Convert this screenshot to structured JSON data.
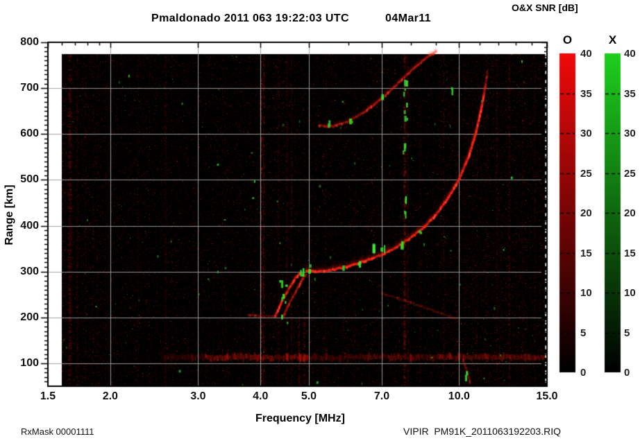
{
  "header": {
    "title": "Pmaldonado 2011 063 19:22:03 UTC",
    "date": "04Mar11",
    "colorbar_title": "O&X SNR [dB]"
  },
  "footer": {
    "rx_mask": "RxMask 00001111",
    "instrument_file": "VIPIR  PM91K_2011063192203.RIQ"
  },
  "chart_data": {
    "type": "heatmap",
    "subtype": "ionogram",
    "description": "VIPIR ionosonde ionogram: O-mode (red) and X-mode (green) echo SNR versus frequency and virtual range",
    "x_axis": {
      "label": "Frequency [MHz]",
      "scale": "log",
      "min": 1.5,
      "max": 15.0,
      "ticks": [
        {
          "value": 1.5,
          "label": "1.5"
        },
        {
          "value": 2.0,
          "label": "2.0"
        },
        {
          "value": 3.0,
          "label": "3.0"
        },
        {
          "value": 4.0,
          "label": "4.0"
        },
        {
          "value": 5.0,
          "label": "5.0"
        },
        {
          "value": 7.0,
          "label": "7.0"
        },
        {
          "value": 10.0,
          "label": "10.0"
        },
        {
          "value": 15.0,
          "label": "15.0"
        }
      ],
      "minor_ticks": [
        1.6,
        1.7,
        1.8,
        1.9,
        2,
        3,
        4,
        5,
        6,
        7,
        8,
        9,
        10,
        11,
        12,
        13,
        14,
        15
      ],
      "gridlines": [
        2,
        3,
        4,
        5,
        7,
        10
      ]
    },
    "y_axis": {
      "label": "Range [km]",
      "min": 50,
      "max": 800,
      "ticks": [
        {
          "value": 800,
          "label": "800"
        },
        {
          "value": 700,
          "label": "700"
        },
        {
          "value": 600,
          "label": "600"
        },
        {
          "value": 500,
          "label": "500"
        },
        {
          "value": 400,
          "label": "400"
        },
        {
          "value": 300,
          "label": "300"
        },
        {
          "value": 200,
          "label": "200"
        },
        {
          "value": 100,
          "label": "100"
        }
      ],
      "minor_step": 10,
      "gridlines": [
        100,
        200,
        300,
        400,
        500,
        600,
        700
      ]
    },
    "colorbars": [
      {
        "label": "O",
        "unit": "dB",
        "min": 0,
        "max": 40,
        "tick_step": 5,
        "tick_labels": [
          "40",
          "35",
          "30",
          "25",
          "20",
          "15",
          "10",
          "5",
          "0"
        ],
        "top_color": "#f00a0a",
        "bottom_color": "#000000"
      },
      {
        "label": "X",
        "unit": "dB",
        "min": 0,
        "max": 40,
        "tick_step": 5,
        "tick_labels": [
          "40",
          "35",
          "30",
          "25",
          "20",
          "15",
          "10",
          "5",
          "0"
        ],
        "top_color": "#1ecf1e",
        "bottom_color": "#000000"
      }
    ],
    "echo_traces": [
      {
        "name": "F-region O-mode main trace",
        "points": [
          [
            4.95,
            302
          ],
          [
            5.15,
            300
          ],
          [
            5.5,
            302
          ],
          [
            6.0,
            311
          ],
          [
            6.5,
            323
          ],
          [
            7.0,
            336
          ],
          [
            7.5,
            353
          ],
          [
            8.0,
            373
          ],
          [
            8.5,
            396
          ],
          [
            9.0,
            424
          ],
          [
            9.5,
            459
          ],
          [
            10.0,
            500
          ],
          [
            10.45,
            549
          ],
          [
            10.8,
            600
          ],
          [
            11.1,
            658
          ],
          [
            11.3,
            705
          ],
          [
            11.42,
            742
          ]
        ],
        "intensity": 1.0,
        "smear": 10,
        "fade_end": true
      },
      {
        "name": "second-hop / upper trace",
        "points": [
          [
            5.25,
            618
          ],
          [
            5.6,
            616
          ],
          [
            6.0,
            627
          ],
          [
            6.5,
            649
          ],
          [
            7.0,
            677
          ],
          [
            7.5,
            707
          ],
          [
            8.05,
            739
          ],
          [
            8.6,
            766
          ],
          [
            9.05,
            781
          ]
        ],
        "intensity": 0.55,
        "smear": 8,
        "fade_end": false
      },
      {
        "name": "F1 cusp left branch",
        "points": [
          [
            4.28,
            202
          ],
          [
            4.42,
            235
          ],
          [
            4.58,
            265
          ],
          [
            4.72,
            288
          ],
          [
            4.83,
            298
          ]
        ],
        "intensity": 0.85,
        "smear": 6,
        "fade_end": false
      },
      {
        "name": "F1 cusp right branch",
        "points": [
          [
            4.44,
            200
          ],
          [
            4.58,
            232
          ],
          [
            4.73,
            260
          ],
          [
            4.87,
            285
          ],
          [
            4.96,
            297
          ]
        ],
        "intensity": 0.5,
        "smear": 6,
        "fade_end": false
      },
      {
        "name": "200 km base extension",
        "points": [
          [
            3.78,
            204
          ],
          [
            4.05,
            202
          ],
          [
            4.3,
            203
          ]
        ],
        "intensity": 0.3,
        "smear": 4,
        "fade_end": false
      },
      {
        "name": "faint descending arc",
        "points": [
          [
            7.0,
            252
          ],
          [
            7.7,
            238
          ],
          [
            8.5,
            222
          ],
          [
            9.3,
            206
          ],
          [
            9.9,
            197
          ]
        ],
        "intensity": 0.2,
        "smear": 3,
        "fade_end": false
      },
      {
        "name": "below-E slanted streak",
        "points": [
          [
            10.2,
            105
          ],
          [
            10.45,
            70
          ],
          [
            10.55,
            52
          ]
        ],
        "intensity": 0.3,
        "smear": 4,
        "fade_end": false
      }
    ],
    "e_region_band": {
      "km": 113,
      "segments": [
        [
          2.55,
          3.1,
          0.22
        ],
        [
          3.1,
          4.95,
          0.5
        ],
        [
          4.95,
          6.5,
          0.28
        ],
        [
          6.5,
          9.0,
          0.35
        ],
        [
          9.0,
          12.0,
          0.45
        ],
        [
          12.0,
          14.9,
          0.5
        ]
      ]
    },
    "rfi_stripes": [
      {
        "f": 1.66,
        "w": 5,
        "a": 0.28
      },
      {
        "f": 1.72,
        "w": 2,
        "a": 0.16
      },
      {
        "f": 2.58,
        "w": 3,
        "a": 0.15
      },
      {
        "f": 4.01,
        "w": 2,
        "a": 0.6
      },
      {
        "f": 4.06,
        "w": 2,
        "a": 0.38
      },
      {
        "f": 4.35,
        "w": 2,
        "a": 0.2
      },
      {
        "f": 4.52,
        "w": 2,
        "a": 0.22
      },
      {
        "f": 4.62,
        "w": 2,
        "a": 0.25
      },
      {
        "f": 4.78,
        "w": 3,
        "a": 0.32,
        "kmTop": 210
      },
      {
        "f": 4.9,
        "w": 3,
        "a": 0.3,
        "kmTop": 200
      },
      {
        "f": 6.2,
        "w": 2,
        "a": 0.1
      },
      {
        "f": 7.78,
        "w": 3,
        "a": 0.45
      },
      {
        "f": 7.9,
        "w": 2,
        "a": 0.22
      },
      {
        "f": 8.35,
        "w": 2,
        "a": 0.12
      },
      {
        "f": 11.9,
        "w": 2,
        "a": 0.14
      },
      {
        "f": 12.6,
        "w": 3,
        "a": 0.16
      },
      {
        "f": 13.4,
        "w": 2,
        "a": 0.13
      },
      {
        "f": 14.2,
        "w": 2,
        "a": 0.13
      }
    ],
    "green_clusters": [
      {
        "f": 7.8,
        "km": 675,
        "n": 8,
        "df": 0.07,
        "dkm": 45
      },
      {
        "f": 7.8,
        "km": 445,
        "n": 4,
        "df": 0.05,
        "dkm": 22
      },
      {
        "f": 7.75,
        "km": 557,
        "n": 3,
        "df": 0.05,
        "dkm": 18
      },
      {
        "f": 6.75,
        "km": 350,
        "n": 2,
        "df": 0.02,
        "dkm": 6,
        "big": true
      },
      {
        "f": 7.05,
        "km": 342,
        "n": 2,
        "df": 0.05,
        "dkm": 8
      },
      {
        "f": 7.7,
        "km": 362,
        "n": 3,
        "df": 0.05,
        "dkm": 10
      },
      {
        "f": 6.3,
        "km": 318,
        "n": 2,
        "df": 0.04,
        "dkm": 6
      },
      {
        "f": 5.9,
        "km": 308,
        "n": 2,
        "df": 0.04,
        "dkm": 6
      },
      {
        "f": 8.35,
        "km": 390,
        "n": 2,
        "df": 0.04,
        "dkm": 8
      },
      {
        "f": 4.45,
        "km": 240,
        "n": 7,
        "df": 0.07,
        "dkm": 42
      },
      {
        "f": 4.85,
        "km": 297,
        "n": 3,
        "df": 0.04,
        "dkm": 8
      },
      {
        "f": 5.02,
        "km": 305,
        "n": 2,
        "df": 0.02,
        "dkm": 10
      },
      {
        "f": 5.5,
        "km": 617,
        "n": 2,
        "df": 0.05,
        "dkm": 8
      },
      {
        "f": 6.05,
        "km": 630,
        "n": 2,
        "df": 0.05,
        "dkm": 8
      },
      {
        "f": 7.05,
        "km": 683,
        "n": 2,
        "df": 0.04,
        "dkm": 8
      },
      {
        "f": 9.7,
        "km": 700,
        "n": 2,
        "df": 0.04,
        "dkm": 10
      },
      {
        "f": 10.35,
        "km": 75,
        "n": 2,
        "df": 0.03,
        "dkm": 15
      }
    ],
    "background_noise": {
      "seed": 1337,
      "density": 0.08,
      "green_density": 0.00045
    }
  }
}
